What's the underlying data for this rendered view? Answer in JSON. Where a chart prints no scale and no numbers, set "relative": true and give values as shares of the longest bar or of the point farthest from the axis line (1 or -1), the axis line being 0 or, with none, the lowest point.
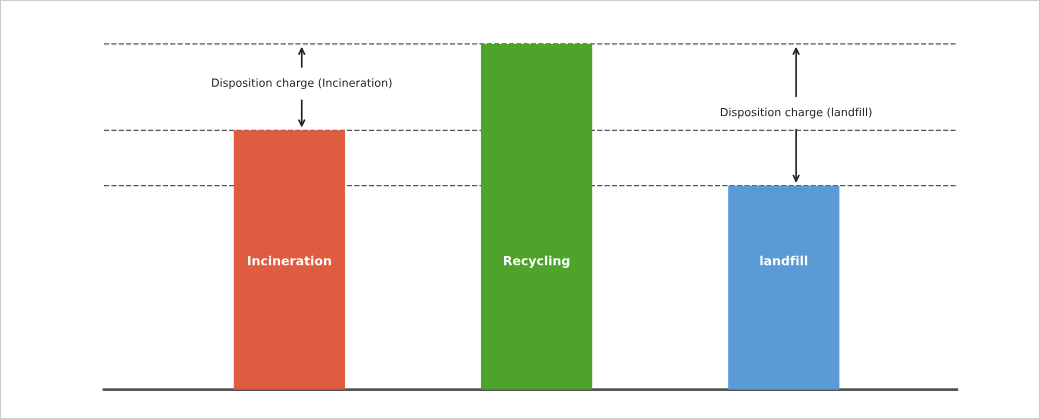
{
  "chart_data": {
    "type": "bar",
    "relative": true,
    "categories": [
      "Incineration",
      "Recycling",
      "landfill"
    ],
    "values": [
      0.75,
      1,
      0.59
    ],
    "colors": [
      "#e05c40",
      "#4ea42a",
      "#5b9bd5"
    ],
    "ref_lines": [
      {
        "axis": "y",
        "value": 1,
        "color": "#555555",
        "line_style": "dashed"
      },
      {
        "axis": "y",
        "value": 0.75,
        "color": "#555555",
        "line_style": "dashed"
      },
      {
        "axis": "y",
        "value": 0.59,
        "color": "#555555",
        "line_style": "dashed"
      }
    ],
    "annotations": [
      "Disposition charge (Incineration)",
      "Disposition charge (landfill)"
    ],
    "legend": false
  }
}
